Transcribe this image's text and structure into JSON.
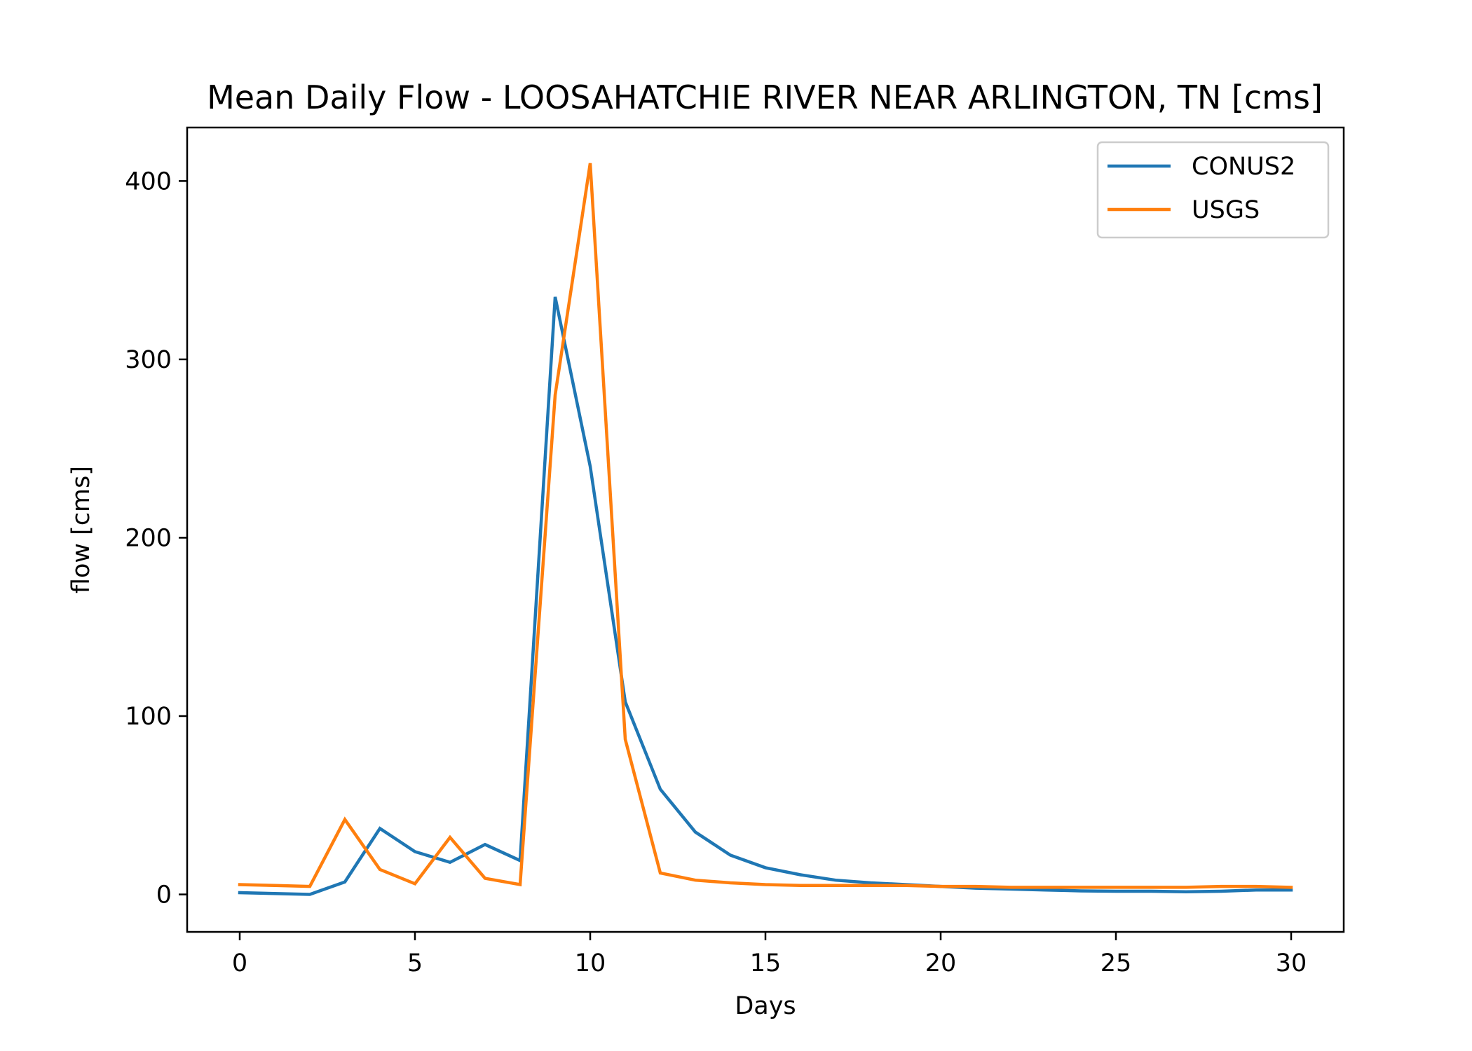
{
  "chart_data": {
    "type": "line",
    "title": "Mean Daily Flow - LOOSAHATCHIE RIVER NEAR ARLINGTON, TN [cms]",
    "xlabel": "Days",
    "ylabel": "flow [cms]",
    "xlim": [
      -1.5,
      31.5
    ],
    "ylim": [
      -21,
      430
    ],
    "xticks": [
      0,
      5,
      10,
      15,
      20,
      25,
      30
    ],
    "yticks": [
      0,
      100,
      200,
      300,
      400
    ],
    "grid": false,
    "legend": "top-right",
    "x": [
      0,
      1,
      2,
      3,
      4,
      5,
      6,
      7,
      8,
      9,
      10,
      11,
      12,
      13,
      14,
      15,
      16,
      17,
      18,
      19,
      20,
      21,
      22,
      23,
      24,
      25,
      26,
      27,
      28,
      29,
      30
    ],
    "series": [
      {
        "name": "CONUS2",
        "color": "#1f77b4",
        "values": [
          1,
          0.5,
          0,
          7,
          37,
          24,
          18,
          28,
          19,
          335,
          240,
          108,
          59,
          35,
          22,
          15,
          11,
          8,
          6.5,
          5.5,
          4.5,
          3.5,
          3,
          2.5,
          2,
          1.8,
          1.8,
          1.5,
          1.8,
          2.5,
          2.5
        ]
      },
      {
        "name": "USGS",
        "color": "#ff7f0e",
        "values": [
          5.5,
          5,
          4.5,
          42,
          14,
          6,
          32,
          9,
          5.5,
          280,
          410,
          87,
          12,
          8,
          6.5,
          5.5,
          5,
          5,
          5,
          5,
          4.5,
          4.5,
          4,
          4,
          4,
          4,
          4,
          4,
          4.5,
          4.5,
          4
        ]
      }
    ]
  }
}
